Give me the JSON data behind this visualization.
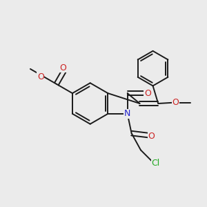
{
  "bg_color": "#ebebeb",
  "bond_color": "#1a1a1a",
  "n_color": "#2222cc",
  "o_color": "#cc2222",
  "cl_color": "#22aa22",
  "lw": 1.4,
  "dlw": 1.4,
  "fig_size": [
    3.0,
    3.0
  ],
  "dpi": 100,
  "xlim": [
    0,
    10
  ],
  "ylim": [
    0,
    10
  ],
  "font_size": 9
}
